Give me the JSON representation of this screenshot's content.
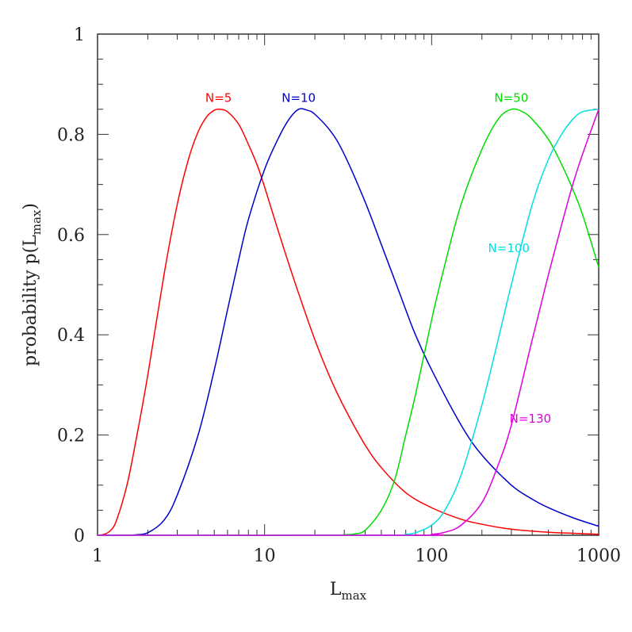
{
  "chart_data": {
    "type": "line",
    "xscale": "log",
    "xlabel": "L",
    "xlabel_sub": "max",
    "ylabel": "probability p(L",
    "ylabel_sub": "max",
    "ylabel_end": ")",
    "xlim": [
      1,
      1000
    ],
    "ylim": [
      0,
      1
    ],
    "x_ticks": [
      {
        "value": 1,
        "label": "1"
      },
      {
        "value": 10,
        "label": "10"
      },
      {
        "value": 100,
        "label": "100"
      },
      {
        "value": 1000,
        "label": "1000"
      }
    ],
    "y_ticks": [
      {
        "value": 0,
        "label": "0"
      },
      {
        "value": 0.2,
        "label": "0.2"
      },
      {
        "value": 0.4,
        "label": "0.4"
      },
      {
        "value": 0.6,
        "label": "0.6"
      },
      {
        "value": 0.8,
        "label": "0.8"
      },
      {
        "value": 1,
        "label": "1"
      }
    ],
    "series": [
      {
        "name": "N=5",
        "color": "#ff0000",
        "label_at": [
          5.3,
          0.865
        ],
        "points": [
          [
            1,
            0
          ],
          [
            1.1,
            0.002
          ],
          [
            1.2,
            0.01
          ],
          [
            1.3,
            0.03
          ],
          [
            1.5,
            0.1
          ],
          [
            1.7,
            0.19
          ],
          [
            2,
            0.32
          ],
          [
            2.5,
            0.52
          ],
          [
            3,
            0.66
          ],
          [
            3.5,
            0.75
          ],
          [
            4,
            0.805
          ],
          [
            4.5,
            0.835
          ],
          [
            5,
            0.848
          ],
          [
            5.4,
            0.85
          ],
          [
            6,
            0.845
          ],
          [
            7,
            0.82
          ],
          [
            8,
            0.78
          ],
          [
            9,
            0.74
          ],
          [
            10,
            0.695
          ],
          [
            12,
            0.61
          ],
          [
            15,
            0.51
          ],
          [
            20,
            0.39
          ],
          [
            25,
            0.31
          ],
          [
            30,
            0.255
          ],
          [
            40,
            0.18
          ],
          [
            50,
            0.135
          ],
          [
            70,
            0.085
          ],
          [
            100,
            0.055
          ],
          [
            150,
            0.032
          ],
          [
            200,
            0.022
          ],
          [
            300,
            0.012
          ],
          [
            500,
            0.006
          ],
          [
            700,
            0.004
          ],
          [
            1000,
            0.002
          ]
        ]
      },
      {
        "name": "N=10",
        "color": "#0000cc",
        "label_at": [
          16,
          0.865
        ],
        "points": [
          [
            1,
            0
          ],
          [
            1.5,
            0
          ],
          [
            1.7,
            0.001
          ],
          [
            2,
            0.005
          ],
          [
            2.5,
            0.03
          ],
          [
            3,
            0.08
          ],
          [
            4,
            0.2
          ],
          [
            5,
            0.33
          ],
          [
            6,
            0.45
          ],
          [
            7,
            0.55
          ],
          [
            8,
            0.63
          ],
          [
            10,
            0.73
          ],
          [
            12,
            0.79
          ],
          [
            14,
            0.83
          ],
          [
            16,
            0.85
          ],
          [
            18,
            0.848
          ],
          [
            20,
            0.84
          ],
          [
            25,
            0.805
          ],
          [
            30,
            0.76
          ],
          [
            40,
            0.665
          ],
          [
            50,
            0.58
          ],
          [
            60,
            0.51
          ],
          [
            70,
            0.45
          ],
          [
            80,
            0.4
          ],
          [
            100,
            0.33
          ],
          [
            150,
            0.22
          ],
          [
            200,
            0.16
          ],
          [
            300,
            0.1
          ],
          [
            400,
            0.072
          ],
          [
            500,
            0.055
          ],
          [
            700,
            0.035
          ],
          [
            1000,
            0.018
          ]
        ]
      },
      {
        "name": "N=50",
        "color": "#00dd00",
        "label_at": [
          300,
          0.865
        ],
        "points": [
          [
            1,
            0
          ],
          [
            20,
            0
          ],
          [
            30,
            0.001
          ],
          [
            35,
            0.003
          ],
          [
            40,
            0.01
          ],
          [
            50,
            0.05
          ],
          [
            60,
            0.11
          ],
          [
            70,
            0.2
          ],
          [
            80,
            0.28
          ],
          [
            100,
            0.43
          ],
          [
            120,
            0.54
          ],
          [
            150,
            0.66
          ],
          [
            200,
            0.77
          ],
          [
            250,
            0.83
          ],
          [
            300,
            0.85
          ],
          [
            350,
            0.845
          ],
          [
            400,
            0.83
          ],
          [
            500,
            0.79
          ],
          [
            600,
            0.74
          ],
          [
            700,
            0.69
          ],
          [
            800,
            0.64
          ],
          [
            1000,
            0.535
          ]
        ]
      },
      {
        "name": "N=100",
        "color": "#00e0e0",
        "label_at": [
          290,
          0.565
        ],
        "points": [
          [
            1,
            0
          ],
          [
            50,
            0
          ],
          [
            70,
            0.002
          ],
          [
            80,
            0.005
          ],
          [
            100,
            0.02
          ],
          [
            120,
            0.05
          ],
          [
            150,
            0.12
          ],
          [
            200,
            0.26
          ],
          [
            250,
            0.39
          ],
          [
            300,
            0.5
          ],
          [
            400,
            0.66
          ],
          [
            500,
            0.75
          ],
          [
            600,
            0.8
          ],
          [
            700,
            0.83
          ],
          [
            800,
            0.845
          ],
          [
            1000,
            0.85
          ]
        ]
      },
      {
        "name": "N=130",
        "color": "#e000e0",
        "label_at": [
          390,
          0.225
        ],
        "points": [
          [
            1,
            0
          ],
          [
            80,
            0
          ],
          [
            100,
            0.002
          ],
          [
            120,
            0.006
          ],
          [
            150,
            0.02
          ],
          [
            200,
            0.065
          ],
          [
            250,
            0.14
          ],
          [
            300,
            0.22
          ],
          [
            400,
            0.39
          ],
          [
            500,
            0.52
          ],
          [
            600,
            0.62
          ],
          [
            700,
            0.7
          ],
          [
            800,
            0.76
          ],
          [
            1000,
            0.85
          ]
        ]
      }
    ]
  }
}
